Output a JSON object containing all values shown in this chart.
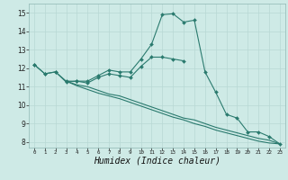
{
  "x": [
    0,
    1,
    2,
    3,
    4,
    5,
    6,
    7,
    8,
    9,
    10,
    11,
    12,
    13,
    14,
    15,
    16,
    17,
    18,
    19,
    20,
    21,
    22,
    23
  ],
  "line1": [
    12.2,
    11.7,
    11.8,
    11.25,
    11.3,
    11.3,
    11.6,
    11.9,
    11.8,
    11.8,
    12.5,
    13.3,
    14.9,
    14.95,
    14.5,
    14.6,
    11.8,
    10.7,
    9.5,
    9.3,
    8.55,
    8.55,
    8.3,
    7.9
  ],
  "line2": [
    12.2,
    11.7,
    11.8,
    11.3,
    11.3,
    11.2,
    11.5,
    11.7,
    11.6,
    11.5,
    12.1,
    12.6,
    12.6,
    12.5,
    12.4,
    null,
    null,
    null,
    null,
    null,
    null,
    null,
    null,
    null
  ],
  "line3": [
    12.2,
    null,
    null,
    11.3,
    11.1,
    11.0,
    10.8,
    10.6,
    10.5,
    10.3,
    10.1,
    9.9,
    9.7,
    9.5,
    9.3,
    9.2,
    9.0,
    8.8,
    8.65,
    8.5,
    8.35,
    8.2,
    8.1,
    7.9
  ],
  "line4": [
    12.2,
    null,
    null,
    11.3,
    11.05,
    10.85,
    10.65,
    10.5,
    10.35,
    10.15,
    9.95,
    9.75,
    9.55,
    9.35,
    9.2,
    9.0,
    8.85,
    8.65,
    8.5,
    8.35,
    8.2,
    8.05,
    7.95,
    7.9
  ],
  "bg_color": "#ceeae6",
  "grid_color": "#b8d8d4",
  "line_color": "#2a7a6e",
  "xlabel": "Humidex (Indice chaleur)",
  "xlabel_fontsize": 7,
  "yticks": [
    8,
    9,
    10,
    11,
    12,
    13,
    14,
    15
  ],
  "xticks": [
    0,
    1,
    2,
    3,
    4,
    5,
    6,
    7,
    8,
    9,
    10,
    11,
    12,
    13,
    14,
    15,
    16,
    17,
    18,
    19,
    20,
    21,
    22,
    23
  ],
  "xlim": [
    -0.5,
    23.5
  ],
  "ylim": [
    7.7,
    15.5
  ]
}
